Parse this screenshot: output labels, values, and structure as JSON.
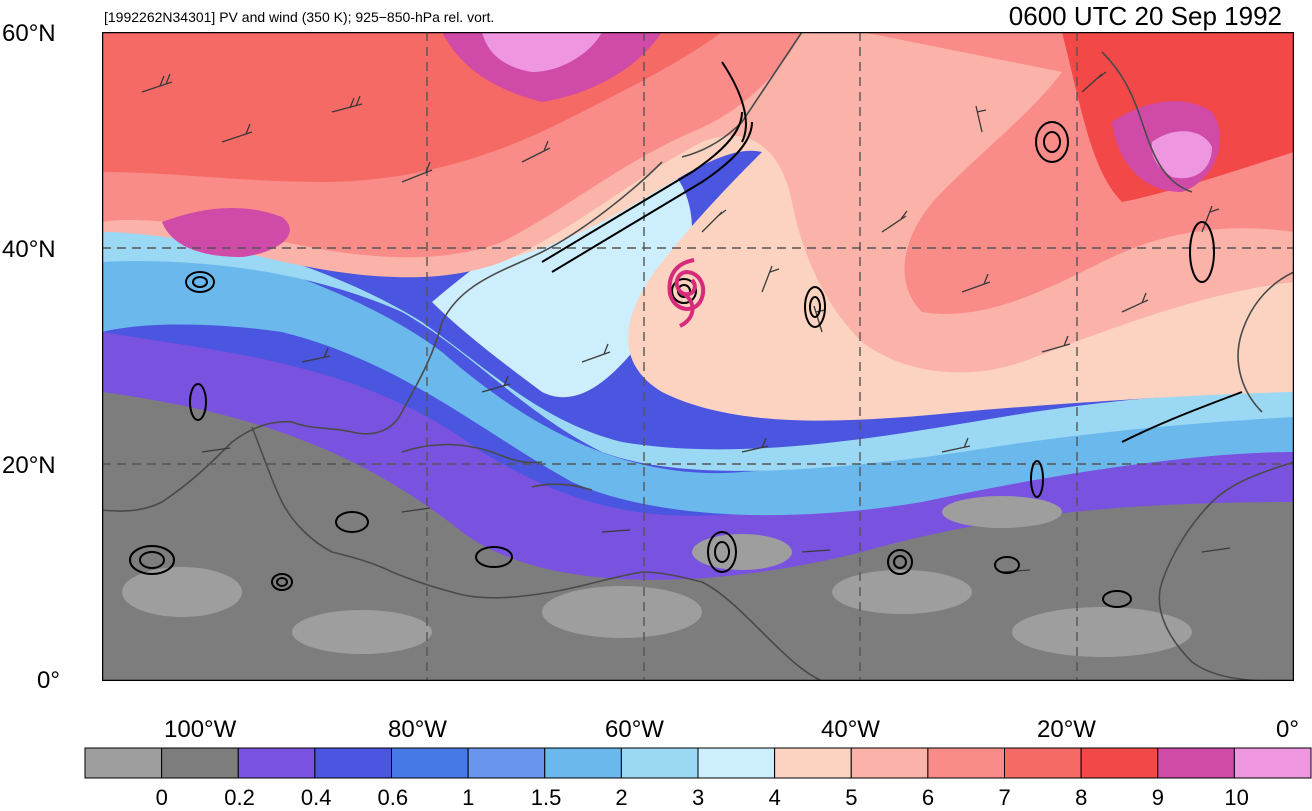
{
  "header": {
    "storm_label": "[1992262N34301] PV and wind (350 K); 925−850-hPa rel. vort.",
    "datetime": "0600 UTC 20 Sep 1992"
  },
  "map": {
    "lat_labels": [
      "60°N",
      "40°N",
      "20°N",
      "0°"
    ],
    "lon_labels": [
      "100°W",
      "80°W",
      "60°W",
      "40°W",
      "20°W",
      "0°"
    ],
    "lat_range": [
      0,
      60
    ],
    "lon_range": [
      -110,
      0
    ],
    "grid_lats": [
      20,
      40
    ],
    "grid_lons": [
      -80,
      -60,
      -40,
      -20
    ],
    "storm_center": {
      "lat": 36,
      "lon": -57
    }
  },
  "colorbar": {
    "labels": [
      "0",
      "0.2",
      "0.4",
      "0.6",
      "1",
      "1.5",
      "2",
      "3",
      "4",
      "5",
      "6",
      "7",
      "8",
      "9",
      "10"
    ],
    "colors": [
      "#9e9e9e",
      "#7d7d7d",
      "#7a52e0",
      "#4a55e0",
      "#4678e6",
      "#6a95ee",
      "#6ab8ec",
      "#9ad8f4",
      "#cdeefc",
      "#fbd3c0",
      "#fbb2a8",
      "#f98c88",
      "#f66a66",
      "#f24848",
      "#d04aa8",
      "#ee96e0"
    ]
  },
  "colors": {
    "storm_marker": "#d62a7a",
    "contour": "#000000",
    "coastline": "#4a4a4a"
  }
}
